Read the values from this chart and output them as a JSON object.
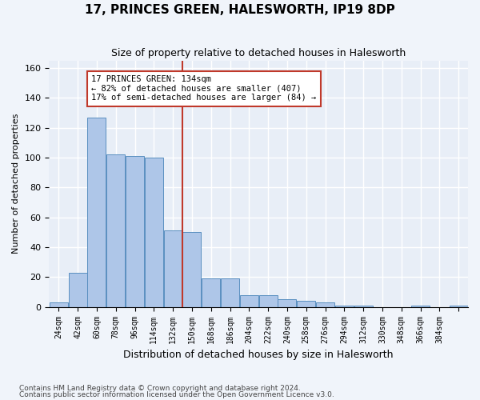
{
  "title": "17, PRINCES GREEN, HALESWORTH, IP19 8DP",
  "subtitle": "Size of property relative to detached houses in Halesworth",
  "xlabel": "Distribution of detached houses by size in Halesworth",
  "ylabel": "Number of detached properties",
  "bar_values": [
    3,
    23,
    127,
    102,
    101,
    100,
    51,
    50,
    19,
    19,
    8,
    8,
    5,
    4,
    3,
    1,
    1,
    0,
    0,
    1,
    0,
    1
  ],
  "bin_left_edges": [
    15,
    33,
    51,
    69,
    87,
    105,
    123,
    141,
    159,
    177,
    195,
    213,
    231,
    249,
    267,
    285,
    303,
    321,
    339,
    357,
    375,
    393
  ],
  "bin_labels": [
    "24sqm",
    "42sqm",
    "60sqm",
    "78sqm",
    "96sqm",
    "114sqm",
    "132sqm",
    "150sqm",
    "168sqm",
    "186sqm",
    "204sqm",
    "222sqm",
    "240sqm",
    "258sqm",
    "276sqm",
    "294sqm",
    "312sqm",
    "330sqm",
    "348sqm",
    "366sqm",
    "384sqm",
    ""
  ],
  "bar_color": "#aec6e8",
  "bar_edge_color": "#5a8fc0",
  "vline_x": 141,
  "vline_color": "#c0392b",
  "annotation_text": "17 PRINCES GREEN: 134sqm\n← 82% of detached houses are smaller (407)\n17% of semi-detached houses are larger (84) →",
  "annotation_box_color": "#ffffff",
  "annotation_box_edge": "#c0392b",
  "ylim": [
    0,
    165
  ],
  "yticks": [
    0,
    20,
    40,
    60,
    80,
    100,
    120,
    140,
    160
  ],
  "background_color": "#e8eef7",
  "grid_color": "#ffffff",
  "footnote1": "Contains HM Land Registry data © Crown copyright and database right 2024.",
  "footnote2": "Contains public sector information licensed under the Open Government Licence v3.0."
}
